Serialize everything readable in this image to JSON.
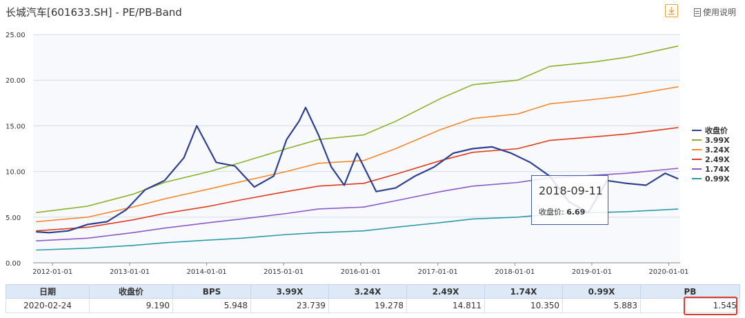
{
  "header": {
    "title": "长城汽车[601633.SH] - PE/PB-Band",
    "manual_label": "使用说明"
  },
  "chart_data": {
    "type": "line",
    "title": "长城汽车[601633.SH] - PE/PB-Band",
    "xlabel": "",
    "ylabel": "",
    "ylim": [
      0,
      25
    ],
    "yticks": [
      "0.00",
      "5.00",
      "10.00",
      "15.00",
      "20.00",
      "25.00"
    ],
    "xticks": [
      "2012-01-01",
      "2013-01-01",
      "2014-01-01",
      "2015-01-01",
      "2016-01-01",
      "2017-01-01",
      "2018-01-01",
      "2019-01-01",
      "2020-01-01"
    ],
    "x_range": [
      "2011-10-01",
      "2020-02-24"
    ],
    "grid": true,
    "legend_position": "right",
    "series": [
      {
        "name": "收盘价",
        "color": "#2e3f8f",
        "points": [
          [
            "2011-10",
            3.4
          ],
          [
            "2011-12",
            3.3
          ],
          [
            "2012-03",
            3.5
          ],
          [
            "2012-06",
            4.2
          ],
          [
            "2012-09",
            4.5
          ],
          [
            "2012-12",
            5.8
          ],
          [
            "2013-03",
            8.0
          ],
          [
            "2013-06",
            9.0
          ],
          [
            "2013-09",
            11.5
          ],
          [
            "2013-11",
            15.0
          ],
          [
            "2014-02",
            11.0
          ],
          [
            "2014-05",
            10.6
          ],
          [
            "2014-08",
            8.3
          ],
          [
            "2014-11",
            9.5
          ],
          [
            "2015-01",
            13.5
          ],
          [
            "2015-03",
            15.5
          ],
          [
            "2015-04",
            17.0
          ],
          [
            "2015-06",
            14.0
          ],
          [
            "2015-08",
            10.5
          ],
          [
            "2015-10",
            8.5
          ],
          [
            "2015-12",
            12.0
          ],
          [
            "2016-03",
            7.8
          ],
          [
            "2016-06",
            8.2
          ],
          [
            "2016-09",
            9.5
          ],
          [
            "2016-12",
            10.5
          ],
          [
            "2017-03",
            12.0
          ],
          [
            "2017-06",
            12.5
          ],
          [
            "2017-09",
            12.7
          ],
          [
            "2017-12",
            12.0
          ],
          [
            "2018-03",
            11.0
          ],
          [
            "2018-06",
            9.5
          ],
          [
            "2018-09",
            6.69
          ],
          [
            "2018-12",
            5.5
          ],
          [
            "2019-03",
            9.0
          ],
          [
            "2019-06",
            8.7
          ],
          [
            "2019-09",
            8.5
          ],
          [
            "2019-12",
            9.8
          ],
          [
            "2020-02",
            9.19
          ]
        ]
      },
      {
        "name": "3.99X",
        "color": "#8db02a",
        "points": [
          [
            "2011-10",
            5.5
          ],
          [
            "2012-06",
            6.2
          ],
          [
            "2013-01",
            7.5
          ],
          [
            "2013-06",
            8.8
          ],
          [
            "2014-01",
            10.0
          ],
          [
            "2014-06",
            11.0
          ],
          [
            "2015-01",
            12.5
          ],
          [
            "2015-06",
            13.5
          ],
          [
            "2016-01",
            14.0
          ],
          [
            "2016-06",
            15.5
          ],
          [
            "2017-01",
            18.0
          ],
          [
            "2017-06",
            19.5
          ],
          [
            "2018-01",
            20.0
          ],
          [
            "2018-06",
            21.5
          ],
          [
            "2019-01",
            22.0
          ],
          [
            "2019-06",
            22.5
          ],
          [
            "2020-02",
            23.739
          ]
        ]
      },
      {
        "name": "3.24X",
        "color": "#f5872e",
        "points": [
          [
            "2011-10",
            4.5
          ],
          [
            "2012-06",
            5.0
          ],
          [
            "2013-01",
            6.1
          ],
          [
            "2013-06",
            7.0
          ],
          [
            "2014-01",
            8.1
          ],
          [
            "2014-06",
            8.9
          ],
          [
            "2015-01",
            10.0
          ],
          [
            "2015-06",
            10.9
          ],
          [
            "2016-01",
            11.2
          ],
          [
            "2016-06",
            12.5
          ],
          [
            "2017-01",
            14.6
          ],
          [
            "2017-06",
            15.8
          ],
          [
            "2018-01",
            16.3
          ],
          [
            "2018-06",
            17.4
          ],
          [
            "2019-01",
            17.9
          ],
          [
            "2019-06",
            18.3
          ],
          [
            "2020-02",
            19.278
          ]
        ]
      },
      {
        "name": "2.49X",
        "color": "#e03a1e",
        "points": [
          [
            "2011-10",
            3.5
          ],
          [
            "2012-06",
            3.9
          ],
          [
            "2013-01",
            4.7
          ],
          [
            "2013-06",
            5.4
          ],
          [
            "2014-01",
            6.2
          ],
          [
            "2014-06",
            6.9
          ],
          [
            "2015-01",
            7.8
          ],
          [
            "2015-06",
            8.4
          ],
          [
            "2016-01",
            8.7
          ],
          [
            "2016-06",
            9.7
          ],
          [
            "2017-01",
            11.2
          ],
          [
            "2017-06",
            12.1
          ],
          [
            "2018-01",
            12.5
          ],
          [
            "2018-06",
            13.4
          ],
          [
            "2019-01",
            13.8
          ],
          [
            "2019-06",
            14.1
          ],
          [
            "2020-02",
            14.811
          ]
        ]
      },
      {
        "name": "1.74X",
        "color": "#8a58c9",
        "points": [
          [
            "2011-10",
            2.4
          ],
          [
            "2012-06",
            2.7
          ],
          [
            "2013-01",
            3.3
          ],
          [
            "2013-06",
            3.8
          ],
          [
            "2014-01",
            4.4
          ],
          [
            "2014-06",
            4.8
          ],
          [
            "2015-01",
            5.4
          ],
          [
            "2015-06",
            5.9
          ],
          [
            "2016-01",
            6.1
          ],
          [
            "2016-06",
            6.8
          ],
          [
            "2017-01",
            7.8
          ],
          [
            "2017-06",
            8.4
          ],
          [
            "2018-01",
            8.8
          ],
          [
            "2018-06",
            9.3
          ],
          [
            "2019-01",
            9.6
          ],
          [
            "2019-06",
            9.8
          ],
          [
            "2020-02",
            10.35
          ]
        ]
      },
      {
        "name": "0.99X",
        "color": "#2a9aa8",
        "points": [
          [
            "2011-10",
            1.4
          ],
          [
            "2012-06",
            1.6
          ],
          [
            "2013-01",
            1.9
          ],
          [
            "2013-06",
            2.2
          ],
          [
            "2014-01",
            2.5
          ],
          [
            "2014-06",
            2.7
          ],
          [
            "2015-01",
            3.1
          ],
          [
            "2015-06",
            3.3
          ],
          [
            "2016-01",
            3.5
          ],
          [
            "2016-06",
            3.9
          ],
          [
            "2017-01",
            4.4
          ],
          [
            "2017-06",
            4.8
          ],
          [
            "2018-01",
            5.0
          ],
          [
            "2018-06",
            5.3
          ],
          [
            "2019-01",
            5.5
          ],
          [
            "2019-06",
            5.6
          ],
          [
            "2020-02",
            5.883
          ]
        ]
      }
    ],
    "tooltip": {
      "date": "2018-09-11",
      "label": "收盘价: ",
      "value": "6.69"
    }
  },
  "table": {
    "headers": [
      "日期",
      "收盘价",
      "BPS",
      "3.99X",
      "3.24X",
      "2.49X",
      "1.74X",
      "0.99X",
      "PB"
    ],
    "row": [
      "2020-02-24",
      "9.190",
      "5.948",
      "23.739",
      "19.278",
      "14.811",
      "10.350",
      "5.883",
      "1.545"
    ]
  }
}
